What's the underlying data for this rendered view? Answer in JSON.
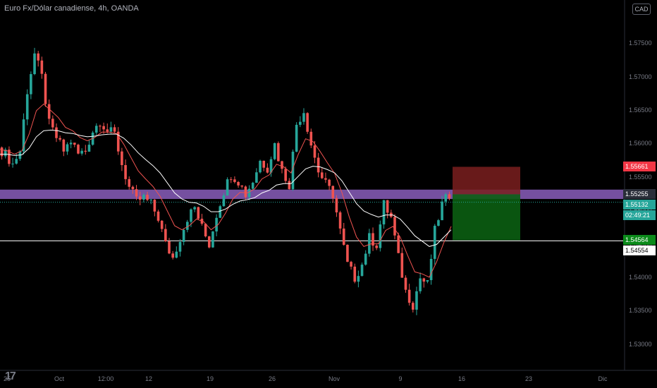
{
  "title": "Euro Fx/Dólar canadiense, 4h, OANDA",
  "currency_badge": "CAD",
  "logo_text": "17",
  "colors": {
    "background": "#000000",
    "up": "#26a69a",
    "down": "#ef5350",
    "ema_fast": "#ef5350",
    "ema_slow": "#ffffff",
    "zone": "#9c6bd6",
    "stop_zone": "#7a1f1f",
    "target_zone": "#0b5e12"
  },
  "price_labels": [
    {
      "name": "stop-price-label",
      "text": "1.55661",
      "bg": "#f23645",
      "fg": "#ffffff"
    },
    {
      "name": "zone-price-label",
      "text": "1.55255",
      "bg": "#2a2e39",
      "fg": "#ffffff"
    },
    {
      "name": "last-price-label",
      "text": "1.55132",
      "bg": "#26a69a",
      "fg": "#ffffff"
    },
    {
      "name": "countdown-label",
      "text": "02:49:21",
      "bg": "#26a69a",
      "fg": "#ffffff"
    },
    {
      "name": "target-price-label",
      "text": "1.54564",
      "bg": "#0b8a1a",
      "fg": "#ffffff"
    },
    {
      "name": "support-price-label",
      "text": "1.54554",
      "bg": "#ffffff",
      "fg": "#000000"
    }
  ],
  "chart_data": {
    "type": "candlestick",
    "title": "Euro Fx/Dólar canadiense, 4h, OANDA",
    "y_ticks": [
      "1.57500",
      "1.57000",
      "1.56500",
      "1.56000",
      "1.55500",
      "1.55000",
      "1.54500",
      "1.54000",
      "1.53500",
      "1.53000"
    ],
    "y_tick_values": [
      1.575,
      1.57,
      1.565,
      1.56,
      1.555,
      1.55,
      1.545,
      1.54,
      1.535,
      1.53
    ],
    "ylim": [
      1.5267,
      1.5805
    ],
    "x_ticks": [
      "25",
      "Oct",
      "12:00",
      "12",
      "19",
      "26",
      "Nov",
      "9",
      "16",
      "23",
      "Dic"
    ],
    "grid": false,
    "price_path": [
      1.5595,
      1.5585,
      1.557,
      1.559,
      1.568,
      1.5735,
      1.57,
      1.563,
      1.561,
      1.559,
      1.5605,
      1.5585,
      1.559,
      1.562,
      1.5635,
      1.562,
      1.5615,
      1.557,
      1.5535,
      1.5515,
      1.552,
      1.551,
      1.549,
      1.545,
      1.543,
      1.546,
      1.549,
      1.5505,
      1.5475,
      1.545,
      1.5495,
      1.553,
      1.5555,
      1.5545,
      1.5525,
      1.5545,
      1.5575,
      1.5565,
      1.56,
      1.556,
      1.554,
      1.563,
      1.565,
      1.56,
      1.556,
      1.554,
      1.5525,
      1.547,
      1.542,
      1.54,
      1.542,
      1.546,
      1.545,
      1.551,
      1.549,
      1.543,
      1.538,
      1.536,
      1.54,
      1.539,
      1.547,
      1.551,
      1.5525
    ],
    "ema_fast": [
      1.5592,
      1.559,
      1.5585,
      1.559,
      1.5615,
      1.565,
      1.566,
      1.565,
      1.564,
      1.5625,
      1.562,
      1.561,
      1.5605,
      1.561,
      1.5618,
      1.5618,
      1.5616,
      1.56,
      1.558,
      1.556,
      1.5548,
      1.5537,
      1.5522,
      1.55,
      1.5478,
      1.5472,
      1.5478,
      1.5488,
      1.5484,
      1.5472,
      1.548,
      1.5497,
      1.5518,
      1.5528,
      1.5527,
      1.5533,
      1.5548,
      1.5554,
      1.557,
      1.5566,
      1.5557,
      1.5585,
      1.5608,
      1.5604,
      1.5589,
      1.5572,
      1.5556,
      1.5527,
      1.5491,
      1.5461,
      1.5447,
      1.5451,
      1.5451,
      1.5471,
      1.5477,
      1.5461,
      1.5434,
      1.5409,
      1.5406,
      1.5401,
      1.5424,
      1.5453,
      1.5477
    ],
    "ema_slow": [
      1.5585,
      1.5585,
      1.5583,
      1.5584,
      1.5594,
      1.5611,
      1.562,
      1.5621,
      1.562,
      1.5617,
      1.5616,
      1.5613,
      1.5611,
      1.5612,
      1.5614,
      1.5615,
      1.5615,
      1.5609,
      1.5599,
      1.5587,
      1.5577,
      1.5568,
      1.5557,
      1.5542,
      1.5527,
      1.5518,
      1.5513,
      1.5512,
      1.5507,
      1.5499,
      1.5499,
      1.5503,
      1.551,
      1.5515,
      1.5517,
      1.552,
      1.5527,
      1.5531,
      1.5539,
      1.5541,
      1.5541,
      1.5552,
      1.5563,
      1.5567,
      1.5566,
      1.5562,
      1.5557,
      1.5545,
      1.5528,
      1.5511,
      1.55,
      1.5495,
      1.5491,
      1.5494,
      1.5494,
      1.5488,
      1.5476,
      1.5463,
      1.5455,
      1.5447,
      1.545,
      1.5461,
      1.5472
    ],
    "resistance_zone": [
      1.5518,
      1.5532
    ],
    "support_level": 1.54554,
    "position": {
      "entry": 1.5525,
      "stop": 1.55661,
      "target": 1.54564
    },
    "last_price": 1.55132
  }
}
